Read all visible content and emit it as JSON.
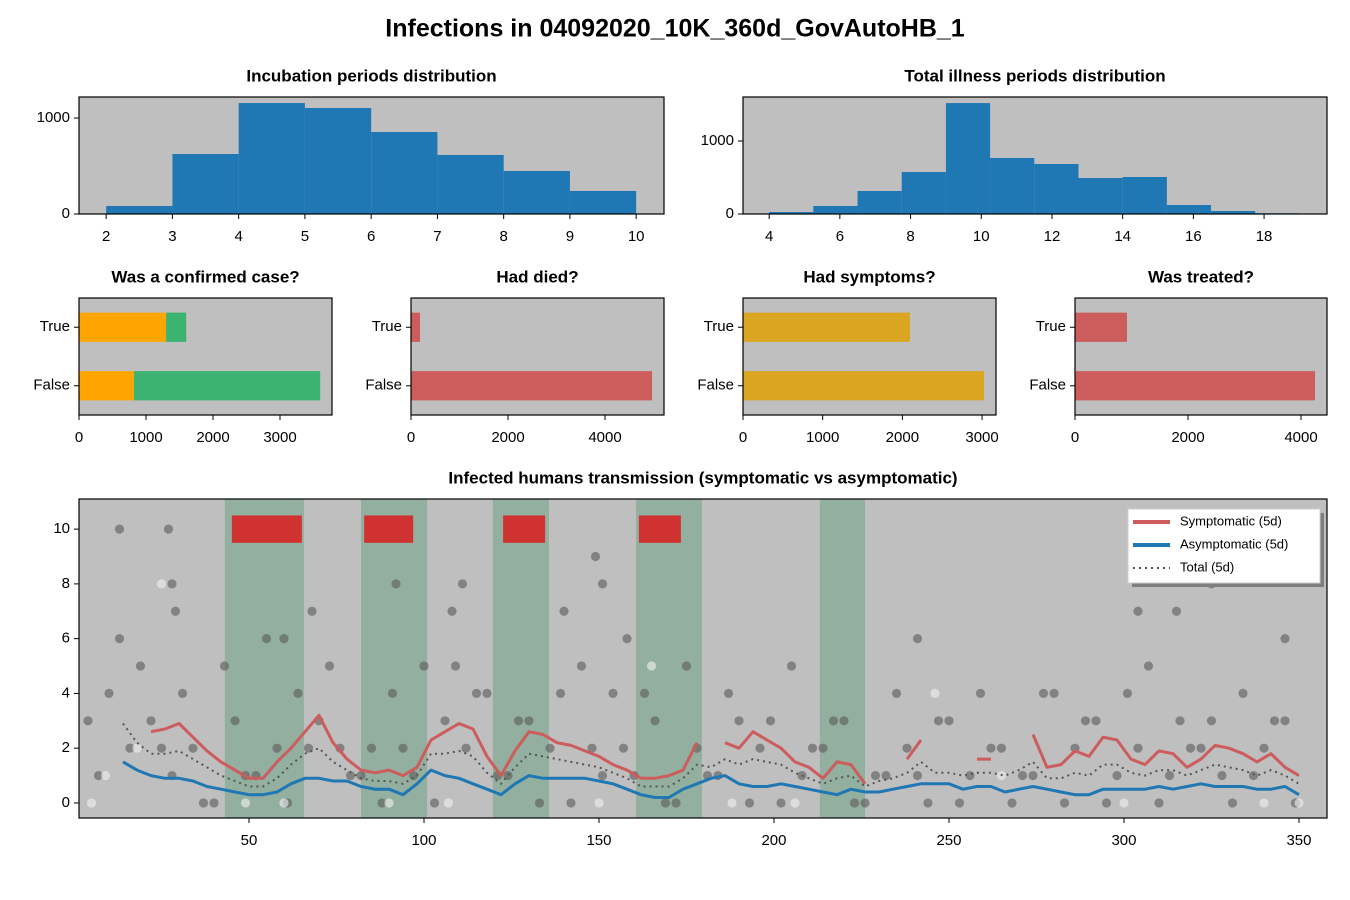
{
  "title": "Infections in 04092020_10K_360d_GovAutoHB_1",
  "chart_data": [
    {
      "type": "histogram",
      "title": "Incubation periods distribution",
      "color": "#1f77b4",
      "bins": [
        2,
        3,
        4,
        5,
        6,
        7,
        8,
        9,
        10
      ],
      "counts": [
        83,
        625,
        1156,
        1104,
        854,
        615,
        448,
        240
      ],
      "xlim": [
        1.59,
        10.42
      ],
      "xticks": [
        2,
        3,
        4,
        5,
        6,
        7,
        8,
        9,
        10
      ],
      "ylim": [
        0,
        1219
      ],
      "yticks": [
        0,
        1000
      ]
    },
    {
      "type": "histogram",
      "title": "Total illness periods distribution",
      "color": "#1f77b4",
      "bins": [
        4,
        5.25,
        6.5,
        7.75,
        9,
        10.25,
        11.5,
        12.75,
        14,
        15.25,
        16.5,
        17.75,
        19
      ],
      "counts": [
        27,
        110,
        315,
        575,
        1520,
        767,
        685,
        493,
        507,
        123,
        41,
        10
      ],
      "xlim": [
        3.26,
        19.78
      ],
      "xticks": [
        4,
        6,
        8,
        10,
        12,
        14,
        16,
        18
      ],
      "ylim": [
        0,
        1603
      ],
      "yticks": [
        0,
        1000
      ]
    },
    {
      "type": "hbar",
      "title": "Was a confirmed case?",
      "categories": [
        "True",
        "False"
      ],
      "series": [
        {
          "color": "#ffa500",
          "values": [
            1300,
            820
          ]
        },
        {
          "color": "#3cb371",
          "values": [
            300,
            2780
          ]
        }
      ],
      "xlim": [
        0,
        3776
      ],
      "xticks": [
        0,
        1000,
        2000,
        3000
      ]
    },
    {
      "type": "hbar",
      "title": "Had died?",
      "categories": [
        "True",
        "False"
      ],
      "series": [
        {
          "color": "#cd5c5c",
          "values": [
            185,
            4970
          ]
        }
      ],
      "xlim": [
        0,
        5216
      ],
      "xticks": [
        0,
        2000,
        4000
      ]
    },
    {
      "type": "hbar",
      "title": "Had symptoms?",
      "categories": [
        "True",
        "False"
      ],
      "series": [
        {
          "color": "#daa520",
          "values": [
            2095,
            3024
          ]
        }
      ],
      "xlim": [
        0,
        3175
      ],
      "xticks": [
        0,
        1000,
        2000,
        3000
      ]
    },
    {
      "type": "hbar",
      "title": "Was treated?",
      "categories": [
        "True",
        "False"
      ],
      "series": [
        {
          "color": "#cd5c5c",
          "values": [
            920,
            4248
          ]
        }
      ],
      "xlim": [
        0,
        4460
      ],
      "xticks": [
        0,
        2000,
        4000
      ]
    },
    {
      "type": "scatter",
      "title": "Infected humans transmission (symptomatic vs asymptomatic)",
      "xlim": [
        1.43,
        358
      ],
      "xticks": [
        50,
        100,
        150,
        200,
        250,
        300,
        350
      ],
      "ylim": [
        -0.55,
        11.1
      ],
      "yticks": [
        0,
        2,
        4,
        6,
        8,
        10
      ],
      "legend": "upper right",
      "spans": [
        [
          43.1,
          65.7
        ],
        [
          82,
          100.9
        ],
        [
          119.7,
          135.7
        ],
        [
          160.6,
          179.4
        ],
        [
          213.1,
          226
        ]
      ],
      "span_color": "#2e8b57",
      "markers": [
        [
          45.1,
          65.1
        ],
        [
          82.9,
          96.9
        ],
        [
          122.6,
          134.6
        ],
        [
          161.4,
          173.4
        ]
      ],
      "marker_y": [
        9.5,
        10.5
      ],
      "marker_color": "#d03232",
      "points": [
        {
          "color": "#5a5a5a",
          "x": [
            4,
            10,
            16,
            22,
            28,
            34,
            40,
            46,
            52,
            58,
            64,
            70,
            76,
            82,
            88,
            94,
            100,
            106,
            112,
            118,
            124,
            130,
            136,
            142,
            148,
            154,
            160,
            166,
            172,
            178,
            184,
            190,
            196,
            202,
            208,
            214,
            220,
            226,
            232,
            238,
            244,
            250,
            256,
            262,
            268,
            274,
            280,
            286,
            292,
            298,
            304,
            310,
            316,
            322,
            328,
            334,
            340,
            346
          ],
          "values": [
            3,
            4,
            2,
            3,
            1,
            2,
            0,
            3,
            1,
            2,
            4,
            3,
            2,
            1,
            0,
            2,
            5,
            3,
            2,
            4,
            1,
            3,
            2,
            0,
            2,
            4,
            1,
            3,
            0,
            2,
            1,
            3,
            2,
            0,
            1,
            2,
            3,
            0,
            1,
            2,
            0,
            3,
            1,
            2,
            0,
            1,
            4,
            2,
            3,
            1,
            2,
            0,
            3,
            2,
            1,
            4,
            2,
            3
          ]
        },
        {
          "color": "#5a5a5a",
          "x": [
            7,
            13,
            19,
            25,
            31,
            37,
            43,
            49,
            55,
            61,
            67,
            73,
            79,
            85,
            91,
            97,
            103,
            109,
            115,
            121,
            127,
            133,
            139,
            145,
            151,
            157,
            163,
            169,
            175,
            181,
            187,
            193,
            199,
            205,
            211,
            217,
            223,
            229,
            235,
            241,
            247,
            253,
            259,
            265,
            271,
            277,
            283,
            289,
            295,
            301,
            307,
            313,
            319,
            325,
            331,
            337,
            343,
            349
          ],
          "values": [
            1,
            6,
            5,
            2,
            4,
            0,
            5,
            1,
            6,
            0,
            2,
            5,
            1,
            2,
            4,
            1,
            0,
            5,
            4,
            1,
            3,
            0,
            4,
            5,
            1,
            2,
            4,
            0,
            5,
            1,
            4,
            0,
            3,
            5,
            2,
            3,
            0,
            1,
            4,
            1,
            3,
            0,
            4,
            2,
            1,
            4,
            0,
            3,
            0,
            4,
            5,
            1,
            2,
            3,
            0,
            1,
            3,
            0
          ]
        },
        {
          "color": "#5a5a5a",
          "x": [
            13,
            27,
            28,
            29,
            60,
            68,
            92,
            108,
            111,
            140,
            149,
            151,
            158,
            241,
            304,
            315,
            325,
            346
          ],
          "values": [
            10,
            10,
            8,
            7,
            6,
            7,
            8,
            7,
            8,
            7,
            9,
            8,
            6,
            6,
            7,
            7,
            8,
            6
          ]
        },
        {
          "color": "#f2f2f2",
          "x": [
            5,
            9,
            18,
            25,
            49,
            60,
            90,
            107,
            150,
            165,
            188,
            206,
            246,
            265,
            300,
            340,
            350
          ],
          "values": [
            0,
            1,
            2,
            8,
            0,
            0,
            0,
            0,
            0,
            5,
            0,
            0,
            4,
            1,
            0,
            0,
            0
          ]
        }
      ],
      "x": [
        14,
        18,
        22,
        26,
        30,
        34,
        38,
        42,
        46,
        50,
        54,
        58,
        62,
        66,
        70,
        74,
        78,
        82,
        86,
        90,
        94,
        98,
        102,
        106,
        110,
        114,
        118,
        122,
        126,
        130,
        134,
        138,
        142,
        146,
        150,
        154,
        158,
        162,
        166,
        170,
        174,
        178,
        182,
        186,
        190,
        194,
        198,
        202,
        206,
        210,
        214,
        218,
        222,
        226,
        230,
        234,
        238,
        242,
        246,
        250,
        254,
        258,
        262,
        266,
        270,
        274,
        278,
        282,
        286,
        290,
        294,
        298,
        302,
        306,
        310,
        314,
        318,
        322,
        326,
        330,
        334,
        338,
        342,
        346,
        350
      ],
      "series": [
        {
          "name": "Symptomatic (5d)",
          "color": "#cd5c5c",
          "linestyle": "solid",
          "values": [
            null,
            null,
            2.6,
            2.7,
            2.9,
            2.4,
            1.9,
            1.5,
            1.2,
            0.9,
            0.9,
            1.5,
            2.0,
            2.6,
            3.2,
            2.2,
            1.6,
            1.2,
            1.1,
            1.2,
            1.0,
            1.3,
            2.3,
            2.6,
            2.9,
            2.7,
            1.7,
            1.0,
            1.9,
            2.6,
            2.5,
            2.2,
            2.1,
            1.9,
            1.7,
            1.4,
            1.2,
            0.9,
            0.9,
            1.0,
            1.2,
            2.2,
            null,
            2.2,
            2.0,
            2.6,
            2.3,
            2.0,
            1.5,
            1.3,
            0.9,
            1.5,
            1.4,
            0.7,
            null,
            null,
            1.6,
            2.3,
            null,
            null,
            null,
            1.6,
            1.6,
            null,
            null,
            2.5,
            1.3,
            1.4,
            1.9,
            1.7,
            2.4,
            2.3,
            1.6,
            1.4,
            1.9,
            1.8,
            1.3,
            1.6,
            2.1,
            2.0,
            1.8,
            1.5,
            1.8,
            1.3,
            1.0
          ]
        },
        {
          "name": "Asymptomatic (5d)",
          "color": "#1f77b4",
          "linestyle": "solid",
          "values": [
            1.5,
            1.2,
            1.0,
            0.9,
            0.9,
            0.8,
            0.6,
            0.5,
            0.4,
            0.3,
            0.3,
            0.4,
            0.7,
            0.9,
            0.9,
            0.8,
            0.8,
            0.6,
            0.5,
            0.5,
            0.3,
            0.7,
            1.2,
            1.0,
            0.9,
            0.7,
            0.5,
            0.3,
            0.7,
            1.0,
            0.9,
            0.9,
            0.9,
            0.9,
            0.8,
            0.7,
            0.5,
            0.3,
            0.2,
            0.2,
            0.5,
            0.7,
            0.9,
            1.0,
            0.7,
            0.6,
            0.6,
            0.7,
            0.6,
            0.5,
            0.4,
            0.3,
            0.5,
            0.4,
            0.4,
            0.5,
            0.6,
            0.7,
            0.7,
            0.7,
            0.5,
            0.6,
            0.6,
            0.4,
            0.5,
            0.6,
            0.5,
            0.4,
            0.3,
            0.3,
            0.5,
            0.5,
            0.5,
            0.5,
            0.6,
            0.5,
            0.6,
            0.7,
            0.6,
            0.6,
            0.6,
            0.5,
            0.5,
            0.6,
            0.3
          ]
        },
        {
          "name": "Total (5d)",
          "color": "#555555",
          "linestyle": "dotted",
          "values": [
            2.9,
            2.2,
            1.8,
            1.8,
            1.9,
            1.6,
            1.3,
            1.0,
            0.8,
            0.6,
            0.6,
            0.9,
            1.4,
            1.8,
            2.0,
            1.5,
            1.2,
            0.9,
            0.8,
            0.8,
            0.7,
            1.0,
            1.8,
            1.8,
            1.9,
            1.7,
            1.1,
            0.7,
            1.3,
            1.8,
            1.7,
            1.6,
            1.5,
            1.4,
            1.3,
            1.1,
            0.9,
            0.6,
            0.6,
            0.6,
            0.9,
            1.4,
            1.3,
            1.6,
            1.4,
            1.6,
            1.5,
            1.4,
            1.1,
            0.9,
            0.7,
            0.9,
            1.0,
            0.6,
            0.8,
            0.9,
            1.1,
            1.5,
            1.1,
            1.1,
            1.0,
            1.1,
            1.1,
            1.0,
            1.2,
            1.5,
            0.9,
            0.9,
            1.1,
            1.0,
            1.4,
            1.4,
            1.1,
            1.0,
            1.2,
            1.2,
            1.0,
            1.2,
            1.4,
            1.3,
            1.2,
            1.0,
            1.2,
            1.0,
            0.7
          ]
        }
      ]
    }
  ]
}
